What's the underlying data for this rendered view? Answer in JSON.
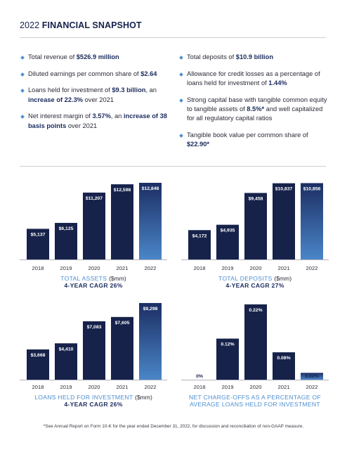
{
  "title": {
    "prefix": "2022",
    "bold": "FINANCIAL SNAPSHOT"
  },
  "bullets_left": [
    [
      {
        "t": "Total revenue of "
      },
      {
        "t": "$526.9 million",
        "b": true
      }
    ],
    [
      {
        "t": "Diluted earnings per common share of "
      },
      {
        "t": "$2.64",
        "b": true
      }
    ],
    [
      {
        "t": "Loans held for investment of "
      },
      {
        "t": "$9.3 billion",
        "b": true
      },
      {
        "t": ", an "
      },
      {
        "t": "increase of 22.3%",
        "b": true
      },
      {
        "t": " over 2021"
      }
    ],
    [
      {
        "t": "Net interest margin of "
      },
      {
        "t": "3.57%",
        "b": true
      },
      {
        "t": ", an "
      },
      {
        "t": "increase of 38 basis points",
        "b": true
      },
      {
        "t": " over 2021"
      }
    ]
  ],
  "bullets_right": [
    [
      {
        "t": "Total deposits of "
      },
      {
        "t": "$10.9 billion",
        "b": true
      }
    ],
    [
      {
        "t": "Allowance for credit losses as a percentage of loans held for investment of "
      },
      {
        "t": "1.44%",
        "b": true
      }
    ],
    [
      {
        "t": "Strong capital base with tangible common equity to tangible assets of "
      },
      {
        "t": "8.5%*",
        "b": true
      },
      {
        "t": " and well capitalized for all regulatory capital ratios"
      }
    ],
    [
      {
        "t": "Tangible book value per common share of "
      },
      {
        "t": "$22.90*",
        "b": true
      }
    ]
  ],
  "chart_data": [
    {
      "type": "bar",
      "title": "TOTAL ASSETS",
      "unit": "($mm)",
      "subtitle": "4-YEAR CAGR 26%",
      "categories": [
        "2018",
        "2019",
        "2020",
        "2021",
        "2022"
      ],
      "values": [
        5137,
        6125,
        11207,
        12598,
        12848
      ],
      "labels": [
        "$5,137",
        "$6,125",
        "$11,207",
        "$12,598",
        "$12,848"
      ],
      "ylim": [
        0,
        13200
      ],
      "label_position": "inside-top"
    },
    {
      "type": "bar",
      "title": "TOTAL DEPOSITS",
      "unit": "($mm)",
      "subtitle": "4-YEAR CAGR 27%",
      "categories": [
        "2018",
        "2019",
        "2020",
        "2021",
        "2022"
      ],
      "values": [
        4172,
        4935,
        9458,
        10837,
        10856
      ],
      "labels": [
        "$4,172",
        "$4,935",
        "$9,458",
        "$10,837",
        "$10,856"
      ],
      "ylim": [
        0,
        11200
      ],
      "label_position": "inside-top"
    },
    {
      "type": "bar",
      "title": "LOANS HELD FOR INVESTMENT",
      "unit": "($mm)",
      "subtitle": "4-YEAR CAGR 26%",
      "categories": [
        "2018",
        "2019",
        "2020",
        "2021",
        "2022"
      ],
      "values": [
        3668,
        4410,
        7083,
        7605,
        9298
      ],
      "labels": [
        "$3,668",
        "$4,410",
        "$7,083",
        "$7,605",
        "$9,298"
      ],
      "ylim": [
        0,
        9550
      ],
      "label_position": "inside-top"
    },
    {
      "type": "bar",
      "title": "NET CHARGE-OFFS AS A PERCENTAGE OF AVERAGE LOANS HELD FOR INVESTMENT",
      "unit": "",
      "subtitle": "",
      "categories": [
        "2018",
        "2019",
        "2020",
        "2021",
        "2022"
      ],
      "values": [
        0,
        0.12,
        0.22,
        0.08,
        0.02
      ],
      "labels": [
        "0%",
        "0.12%",
        "0.22%",
        "0.08%",
        "0.02%"
      ],
      "ylim": [
        0,
        0.23
      ],
      "label_position": "inside-top"
    }
  ],
  "footnote": "*See Annual Report on Form 10-K for the year ended December 31, 2022, for discussion and reconciliation of non-GAAP measure.",
  "colors": {
    "navy": "#16224a",
    "accent_blue": "#4d8fd1",
    "last_bar_top": "#1c2e63",
    "last_bar_bottom": "#4a86c9"
  }
}
